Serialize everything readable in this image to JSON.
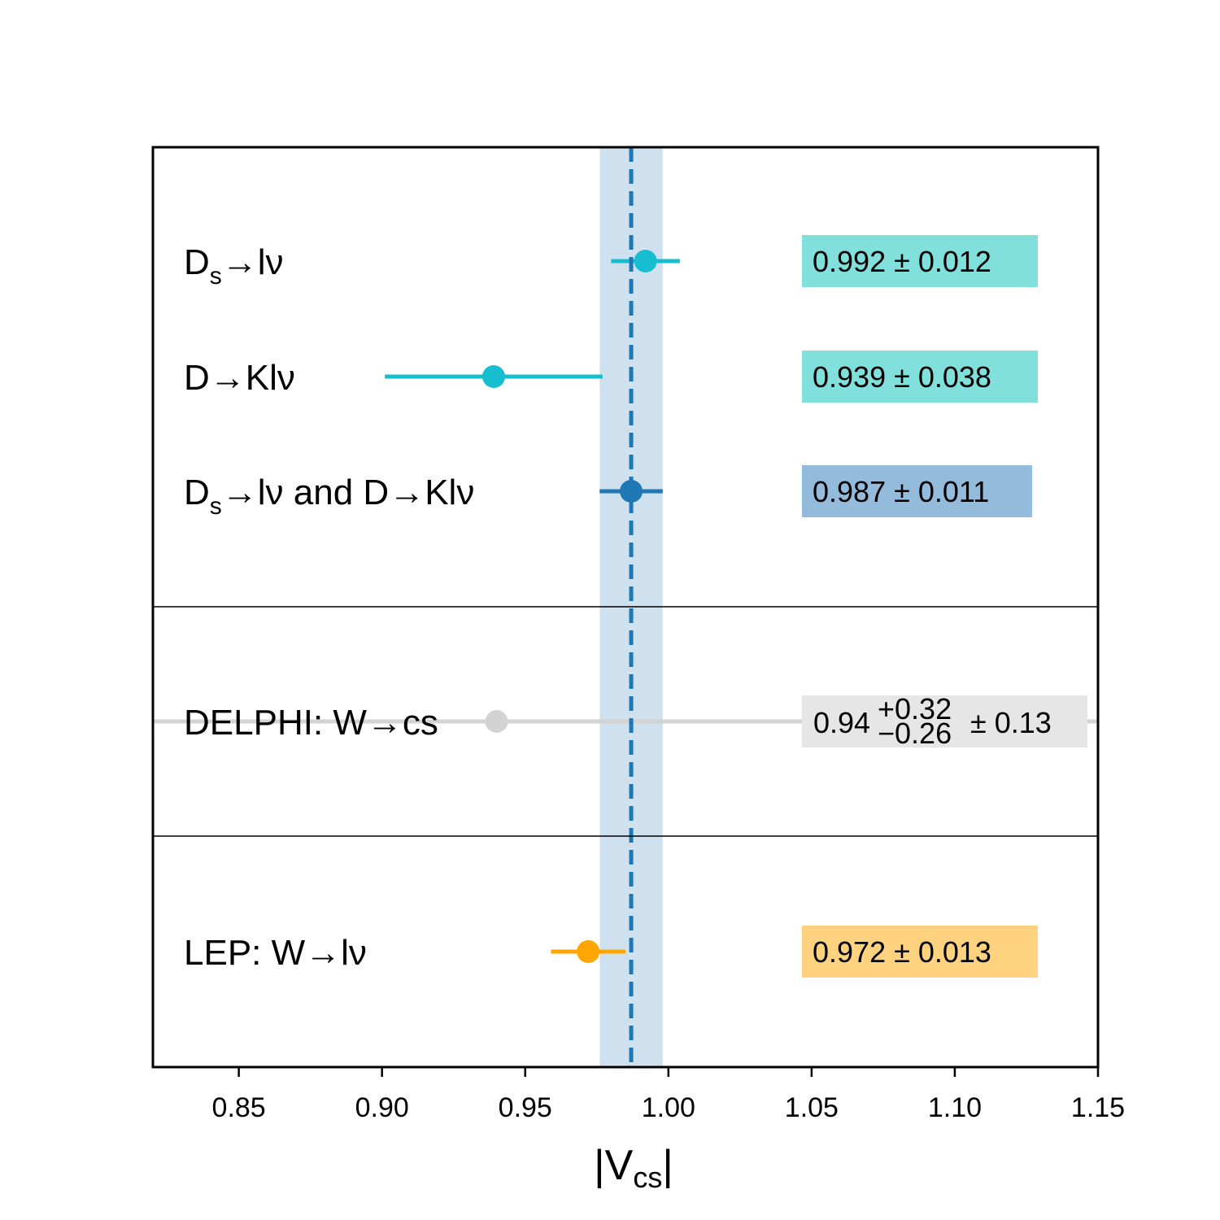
{
  "chart_data": {
    "type": "scatter",
    "subtype": "forest-plot",
    "xlabel": {
      "main": "|V",
      "sub": "cs",
      "end": "|"
    },
    "xlim": [
      0.82,
      1.15
    ],
    "xticks": [
      0.85,
      0.9,
      0.95,
      1.0,
      1.05,
      1.1,
      1.15
    ],
    "xtick_labels": [
      "0.85",
      "0.90",
      "0.95",
      "1.00",
      "1.05",
      "1.10",
      "1.15"
    ],
    "reference": {
      "value": 0.987,
      "band": [
        0.976,
        0.998
      ],
      "band_color": "#cfe1ef",
      "line_color": "#1f77b4"
    },
    "groups": [
      {
        "rows": [
          0,
          1,
          2
        ]
      },
      {
        "rows": [
          3
        ]
      },
      {
        "rows": [
          4
        ]
      }
    ],
    "points": [
      {
        "label": {
          "main": "D",
          "sub": "s",
          "rest": "→lν"
        },
        "value": 0.992,
        "err_minus": 0.012,
        "err_plus": 0.012,
        "value_text": "0.992 ± 0.012",
        "color": "#17becf",
        "box_color": "#82e0dc"
      },
      {
        "label": {
          "main": "D→Klν"
        },
        "value": 0.939,
        "err_minus": 0.038,
        "err_plus": 0.038,
        "value_text": "0.939 ± 0.038",
        "color": "#17becf",
        "box_color": "#82e0dc"
      },
      {
        "label": {
          "main": "D",
          "sub": "s",
          "rest": "→lν and D→Klν"
        },
        "value": 0.987,
        "err_minus": 0.011,
        "err_plus": 0.011,
        "value_text": "0.987 ± 0.011",
        "color": "#1f77b4",
        "box_color": "#93bcdc"
      },
      {
        "label": {
          "main": "DELPHI: W→cs"
        },
        "value": 0.94,
        "err_minus": 0.26,
        "err_plus": 0.32,
        "value_parts": {
          "central": "0.94",
          "sup": "+0.32",
          "sub": "−0.26",
          "tail": "± 0.13"
        },
        "color": "#d3d3d3",
        "box_color": "#e6e6e6"
      },
      {
        "label": {
          "main": "LEP: W→lν"
        },
        "value": 0.972,
        "err_minus": 0.013,
        "err_plus": 0.013,
        "value_text": "0.972 ± 0.013",
        "color": "#ffa500",
        "box_color": "#ffd280"
      }
    ]
  }
}
